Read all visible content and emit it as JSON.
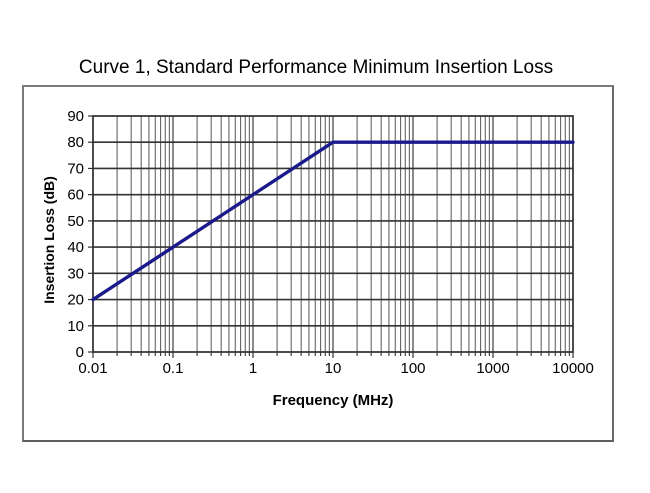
{
  "chart_data": {
    "type": "line",
    "title": "Curve 1, Standard Performance Minimum Insertion Loss",
    "xlabel": "Frequency (MHz)",
    "ylabel": "Insertion Loss (dB)",
    "x_scale": "log",
    "y_scale": "linear",
    "xlim": [
      0.01,
      10000
    ],
    "ylim": [
      0,
      90
    ],
    "x_ticks": [
      0.01,
      0.1,
      1,
      10,
      100,
      1000,
      10000
    ],
    "x_tick_labels": [
      "0.01",
      "0.1",
      "1",
      "10",
      "100",
      "1000",
      "10000"
    ],
    "y_ticks": [
      0,
      10,
      20,
      30,
      40,
      50,
      60,
      70,
      80,
      90
    ],
    "y_tick_labels": [
      "0",
      "10",
      "20",
      "30",
      "40",
      "50",
      "60",
      "70",
      "80",
      "90"
    ],
    "grid": "major-y, major-and-minor-log-x",
    "legend": "none",
    "series": [
      {
        "name": "Curve 1",
        "color": "#1a1a8c",
        "points": [
          {
            "x": 0.01,
            "y": 20
          },
          {
            "x": 10,
            "y": 80
          },
          {
            "x": 10000,
            "y": 80
          }
        ]
      }
    ],
    "colors": {
      "frame": "#2e2e2e",
      "grid_y": "#333333",
      "grid_x_major": "#4a4a4a",
      "grid_x_minor": "#565656",
      "tick": "#333333",
      "text": "#000000",
      "plot_background": "#ffffff"
    }
  }
}
